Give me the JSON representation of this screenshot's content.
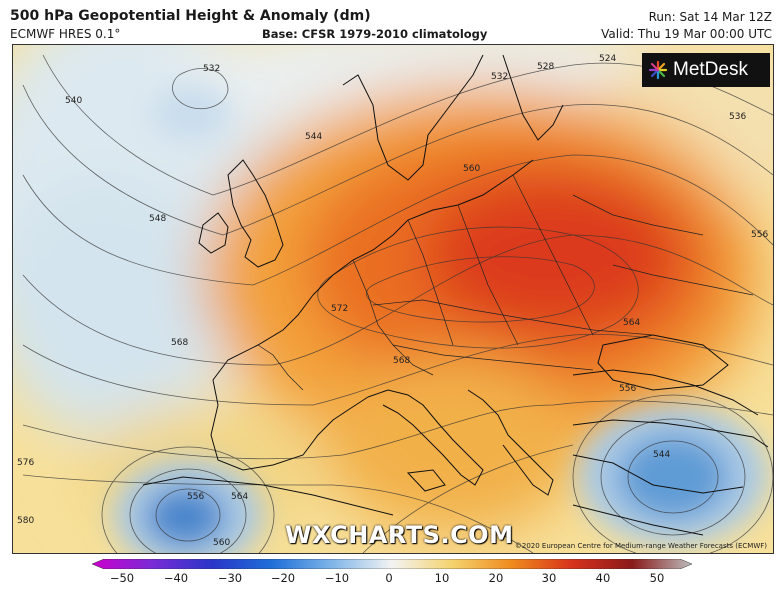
{
  "header": {
    "title": "500 hPa Geopotential Height & Anomaly (dm)",
    "model": "ECMWF HRES 0.1°",
    "base": "Base: CFSR 1979-2010 climatology",
    "run": "Run: Sat 14 Mar 12Z",
    "valid": "Valid: Thu 19 Mar 00:00 UTC"
  },
  "branding": {
    "logo_text": "MetDesk",
    "watermark": "WXCHARTS.COM",
    "credit": "©2020 European Centre for Medium-range Weather Forecasts (ECMWF)"
  },
  "contour_labels": [
    "532",
    "540",
    "544",
    "548",
    "568",
    "572",
    "576",
    "580",
    "556",
    "564",
    "560",
    "532",
    "528",
    "524",
    "536",
    "560",
    "556",
    "564",
    "568",
    "556",
    "544"
  ],
  "colorbar": {
    "ticks": [
      "−50",
      "−40",
      "−30",
      "−20",
      "−10",
      "0",
      "10",
      "20",
      "30",
      "40",
      "50"
    ],
    "colors": [
      "#cc00cc",
      "#7a2ad6",
      "#2a36c8",
      "#1f6fd8",
      "#7fb5e8",
      "#f3f3f3",
      "#f4d36e",
      "#f08a1e",
      "#d7321c",
      "#8a1a1a",
      "#bdbdbd"
    ]
  }
}
